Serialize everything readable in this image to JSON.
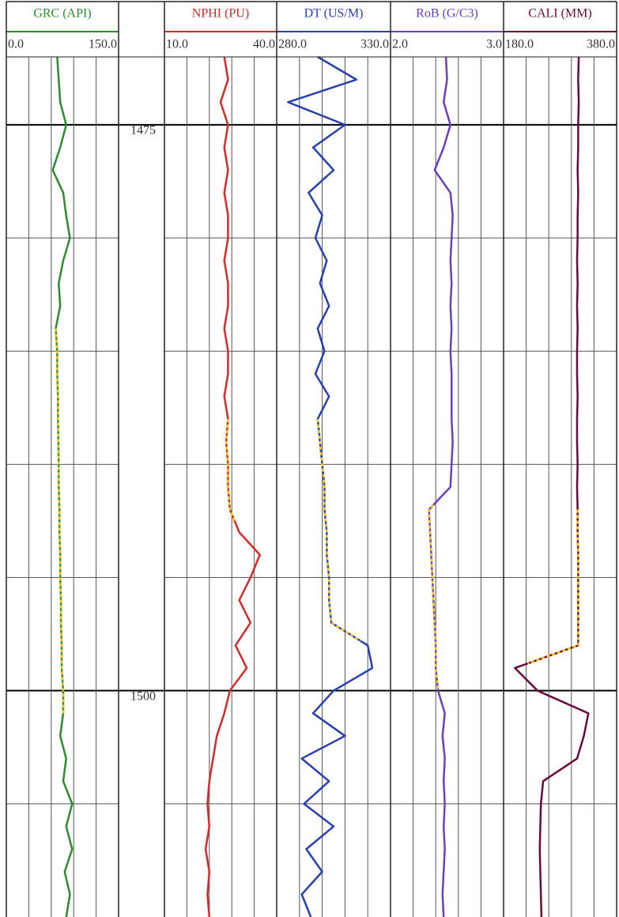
{
  "chart_data": {
    "type": "well-log",
    "depth": [
      1472,
      1473,
      1474,
      1475,
      1476,
      1477,
      1478,
      1479,
      1480,
      1481,
      1482,
      1483,
      1484,
      1485,
      1486,
      1487,
      1488,
      1489,
      1490,
      1491,
      1492,
      1493,
      1494,
      1495,
      1496,
      1497,
      1498,
      1499,
      1500,
      1501,
      1502,
      1503,
      1504,
      1505,
      1506,
      1507,
      1508,
      1509,
      1510
    ],
    "ylim": [
      1472,
      1510
    ],
    "yticks": [
      1475,
      1500
    ],
    "ygrid": [
      1475,
      1480,
      1485,
      1490,
      1495,
      1500,
      1505
    ],
    "series": [
      {
        "name": "GRC (API)",
        "color": "#2e8b2e",
        "xlim": [
          0,
          150
        ],
        "xticks": [
          {
            "value": 0,
            "label": "0.0"
          },
          {
            "value": 150,
            "label": "150.0"
          }
        ],
        "edited": [
          1484,
          1501
        ],
        "values": [
          68,
          70,
          72,
          80,
          72,
          62,
          76,
          80,
          85,
          76,
          70,
          72,
          66,
          68,
          68,
          69,
          69,
          69.5,
          70,
          70,
          71,
          71,
          72,
          72,
          73,
          73,
          74,
          74,
          76,
          76,
          72,
          80,
          76,
          88,
          80,
          88,
          78,
          85,
          80
        ]
      },
      {
        "name": "NPHI (PU)",
        "color": "#d42a2a",
        "xlim": [
          10,
          40
        ],
        "xticks": [
          {
            "value": 10,
            "label": "10.0"
          },
          {
            "value": 40,
            "label": "40.0"
          }
        ],
        "edited": [
          1488,
          1492.5
        ],
        "values": [
          26,
          27,
          25,
          27,
          26,
          27,
          26,
          27,
          27,
          26,
          27,
          27,
          26,
          27,
          27,
          26,
          27,
          26.5,
          27,
          27,
          27.5,
          30,
          35.5,
          33,
          30,
          33,
          29,
          32,
          27.5,
          26,
          24,
          23,
          22,
          21.5,
          22,
          21,
          22,
          21.5,
          22
        ]
      },
      {
        "name": "DT (US/M)",
        "color": "#2a3fb0",
        "xlim": [
          280,
          330
        ],
        "xticks": [
          {
            "value": 280,
            "label": "280.0"
          },
          {
            "value": 330,
            "label": "330.0"
          }
        ],
        "edited": [
          1488,
          1497.8
        ],
        "values": [
          298,
          315,
          285,
          310,
          296,
          305,
          294,
          300,
          297,
          302,
          299,
          303,
          298,
          301,
          297,
          303,
          298,
          299,
          300,
          301,
          301,
          302,
          302,
          303,
          303,
          304,
          320,
          322,
          305,
          296,
          310,
          291,
          303,
          292,
          305,
          293,
          300,
          291,
          295
        ]
      },
      {
        "name": "RoB (G/C3)",
        "color": "#6a3fc0",
        "xlim": [
          2,
          3
        ],
        "xticks": [
          {
            "value": 2,
            "label": "2.0"
          },
          {
            "value": 3,
            "label": "3.0"
          }
        ],
        "edited": [
          1491.8,
          1500
        ],
        "values": [
          2.49,
          2.5,
          2.47,
          2.53,
          2.47,
          2.39,
          2.53,
          2.55,
          2.54,
          2.53,
          2.54,
          2.53,
          2.54,
          2.53,
          2.54,
          2.54,
          2.54,
          2.55,
          2.54,
          2.53,
          2.34,
          2.35,
          2.36,
          2.37,
          2.38,
          2.39,
          2.4,
          2.4,
          2.42,
          2.48,
          2.46,
          2.48,
          2.47,
          2.48,
          2.47,
          2.48,
          2.47,
          2.46,
          2.47
        ]
      },
      {
        "name": "CALI (MM)",
        "color": "#6a0a3a",
        "xlim": [
          180,
          380
        ],
        "xticks": [
          {
            "value": 180,
            "label": "180.0"
          },
          {
            "value": 380,
            "label": "380.0"
          }
        ],
        "edited": [
          1492,
          1498.8
        ],
        "values": [
          313,
          312,
          313,
          312,
          312,
          311,
          312,
          311,
          311,
          310,
          311,
          310,
          311,
          310,
          310,
          311,
          310,
          310,
          311,
          310,
          311,
          311,
          312,
          312,
          312,
          312,
          312,
          200,
          240,
          330,
          322,
          310,
          250,
          246,
          245,
          244,
          245,
          246,
          247
        ]
      }
    ]
  }
}
